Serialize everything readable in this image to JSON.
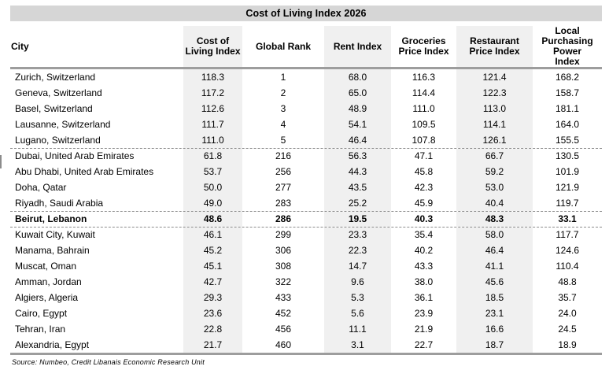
{
  "title_bar": {
    "label": "Cost of Living Index 2026"
  },
  "source_note": "Source: Numbeo, Credit Libanais Economic Research Unit",
  "colors": {
    "title_bar_bg": "#d6d6d6",
    "column_band_bg": "#f0f0f0",
    "rule_gray": "#9d9d9d",
    "dashed_separator": "#8c8c8c",
    "text": "#000000"
  },
  "chart_data": {
    "type": "table",
    "title": "Cost of Living Index 2026",
    "columns": [
      "City",
      "Cost of\nLiving Index",
      "Global Rank",
      "Rent Index",
      "Groceries\nPrice Index",
      "Restaurant\nPrice Index",
      "Local\nPurchasing\nPower\nIndex"
    ],
    "highlighted_row": "Beirut, Lebanon",
    "group_separators_after": [
      "Lugano, Switzerland",
      "Riyadh, Saudi Arabia",
      "Beirut, Lebanon"
    ],
    "rows": [
      {
        "city": "Zurich, Switzerland",
        "cost_of_living_index": "118.3",
        "global_rank": "1",
        "rent_index": "68.0",
        "groceries_price_index": "116.3",
        "restaurant_price_index": "121.4",
        "local_purchasing_power_index": "168.2",
        "bold": false,
        "dashed_top": false
      },
      {
        "city": "Geneva, Switzerland",
        "cost_of_living_index": "117.2",
        "global_rank": "2",
        "rent_index": "65.0",
        "groceries_price_index": "114.4",
        "restaurant_price_index": "122.3",
        "local_purchasing_power_index": "158.7",
        "bold": false,
        "dashed_top": false
      },
      {
        "city": "Basel, Switzerland",
        "cost_of_living_index": "112.6",
        "global_rank": "3",
        "rent_index": "48.9",
        "groceries_price_index": "111.0",
        "restaurant_price_index": "113.0",
        "local_purchasing_power_index": "181.1",
        "bold": false,
        "dashed_top": false
      },
      {
        "city": "Lausanne, Switzerland",
        "cost_of_living_index": "111.7",
        "global_rank": "4",
        "rent_index": "54.1",
        "groceries_price_index": "109.5",
        "restaurant_price_index": "114.1",
        "local_purchasing_power_index": "164.0",
        "bold": false,
        "dashed_top": false
      },
      {
        "city": "Lugano, Switzerland",
        "cost_of_living_index": "111.0",
        "global_rank": "5",
        "rent_index": "46.4",
        "groceries_price_index": "107.8",
        "restaurant_price_index": "126.1",
        "local_purchasing_power_index": "155.5",
        "bold": false,
        "dashed_top": false
      },
      {
        "city": "Dubai, United Arab Emirates",
        "cost_of_living_index": "61.8",
        "global_rank": "216",
        "rent_index": "56.3",
        "groceries_price_index": "47.1",
        "restaurant_price_index": "66.7",
        "local_purchasing_power_index": "130.5",
        "bold": false,
        "dashed_top": true
      },
      {
        "city": "Abu Dhabi, United Arab Emirates",
        "cost_of_living_index": "53.7",
        "global_rank": "256",
        "rent_index": "44.3",
        "groceries_price_index": "45.8",
        "restaurant_price_index": "59.2",
        "local_purchasing_power_index": "101.9",
        "bold": false,
        "dashed_top": false
      },
      {
        "city": "Doha, Qatar",
        "cost_of_living_index": "50.0",
        "global_rank": "277",
        "rent_index": "43.5",
        "groceries_price_index": "42.3",
        "restaurant_price_index": "53.0",
        "local_purchasing_power_index": "121.9",
        "bold": false,
        "dashed_top": false
      },
      {
        "city": "Riyadh, Saudi Arabia",
        "cost_of_living_index": "49.0",
        "global_rank": "283",
        "rent_index": "25.2",
        "groceries_price_index": "45.9",
        "restaurant_price_index": "40.4",
        "local_purchasing_power_index": "119.7",
        "bold": false,
        "dashed_top": false
      },
      {
        "city": "Beirut, Lebanon",
        "cost_of_living_index": "48.6",
        "global_rank": "286",
        "rent_index": "19.5",
        "groceries_price_index": "40.3",
        "restaurant_price_index": "48.3",
        "local_purchasing_power_index": "33.1",
        "bold": true,
        "dashed_top": true
      },
      {
        "city": "Kuwait City, Kuwait",
        "cost_of_living_index": "46.1",
        "global_rank": "299",
        "rent_index": "23.3",
        "groceries_price_index": "35.4",
        "restaurant_price_index": "58.0",
        "local_purchasing_power_index": "117.7",
        "bold": false,
        "dashed_top": true
      },
      {
        "city": "Manama, Bahrain",
        "cost_of_living_index": "45.2",
        "global_rank": "306",
        "rent_index": "22.3",
        "groceries_price_index": "40.2",
        "restaurant_price_index": "46.4",
        "local_purchasing_power_index": "124.6",
        "bold": false,
        "dashed_top": false
      },
      {
        "city": "Muscat, Oman",
        "cost_of_living_index": "45.1",
        "global_rank": "308",
        "rent_index": "14.7",
        "groceries_price_index": "43.3",
        "restaurant_price_index": "41.1",
        "local_purchasing_power_index": "110.4",
        "bold": false,
        "dashed_top": false
      },
      {
        "city": "Amman, Jordan",
        "cost_of_living_index": "42.7",
        "global_rank": "322",
        "rent_index": "9.6",
        "groceries_price_index": "38.0",
        "restaurant_price_index": "45.6",
        "local_purchasing_power_index": "48.8",
        "bold": false,
        "dashed_top": false
      },
      {
        "city": "Algiers, Algeria",
        "cost_of_living_index": "29.3",
        "global_rank": "433",
        "rent_index": "5.3",
        "groceries_price_index": "36.1",
        "restaurant_price_index": "18.5",
        "local_purchasing_power_index": "35.7",
        "bold": false,
        "dashed_top": false
      },
      {
        "city": "Cairo, Egypt",
        "cost_of_living_index": "23.6",
        "global_rank": "452",
        "rent_index": "5.6",
        "groceries_price_index": "23.9",
        "restaurant_price_index": "23.1",
        "local_purchasing_power_index": "24.0",
        "bold": false,
        "dashed_top": false
      },
      {
        "city": "Tehran, Iran",
        "cost_of_living_index": "22.8",
        "global_rank": "456",
        "rent_index": "11.1",
        "groceries_price_index": "21.9",
        "restaurant_price_index": "16.6",
        "local_purchasing_power_index": "24.5",
        "bold": false,
        "dashed_top": false
      },
      {
        "city": "Alexandria, Egypt",
        "cost_of_living_index": "21.7",
        "global_rank": "460",
        "rent_index": "3.1",
        "groceries_price_index": "22.7",
        "restaurant_price_index": "18.7",
        "local_purchasing_power_index": "18.9",
        "bold": false,
        "dashed_top": false
      }
    ]
  }
}
